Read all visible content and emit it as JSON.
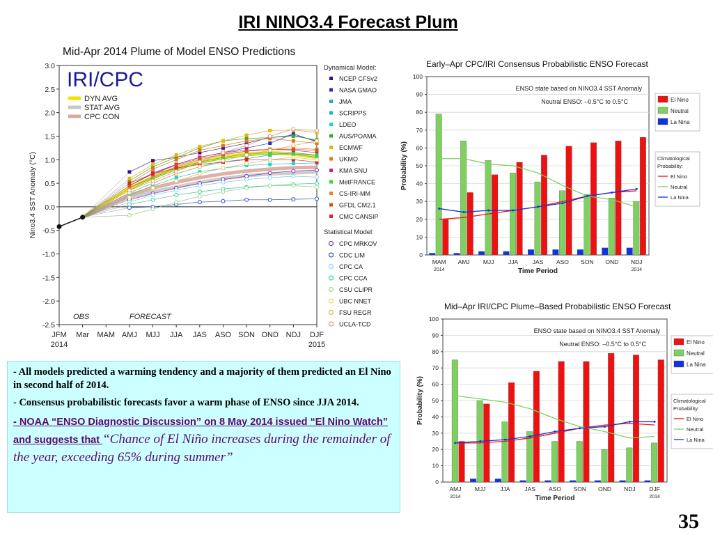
{
  "slide": {
    "title": "IRI NINO3.4 Forecast Plum",
    "page_number": "35"
  },
  "notes": {
    "bullet1": "- All models predicted a warming tendency and a majority of them predicted an El Nino in second half of 2014.",
    "bullet2": "- Consensus probabilistic forecasts favor a warm phase of ENSO since JJA 2014.",
    "bullet3_link": "- NOAA “ENSO Diagnostic Discussion” on 8 May 2014 issued “El Nino Watch” and suggests that ",
    "bullet3_quote": "“Chance of El Niño increases during the remainder of the year, exceeding 65% during summer”"
  },
  "chart_data": [
    {
      "type": "line",
      "title": "Mid-Apr 2014 Plume of Model ENSO Predictions",
      "logo": "IRI/CPC",
      "ylabel": "Nino3.4 SST Anomaly (°C)",
      "ylim": [
        -2.5,
        3.0
      ],
      "yticks": [
        "3.0",
        "2.5",
        "2.0",
        "1.5",
        "1.0",
        "0.5",
        "0.0",
        "-0.5",
        "-1.0",
        "-1.5",
        "-2.0",
        "-2.5"
      ],
      "x": [
        "JFM",
        "Mar",
        "MAM",
        "AMJ",
        "MJJ",
        "JJA",
        "JAS",
        "ASO",
        "SON",
        "OND",
        "NDJ",
        "DJF"
      ],
      "x_year_labels": {
        "first": "2014",
        "last": "2015"
      },
      "obs_label": "OBS",
      "forecast_label": "FORECAST",
      "observed": [
        -0.42,
        -0.22
      ],
      "averages_legend": [
        "DYN AVG",
        "STAT AVG",
        "CPC CON"
      ],
      "averages": {
        "dyn": [
          0.4,
          0.62,
          0.82,
          0.95,
          1.05,
          1.12,
          1.15,
          1.12,
          1.05
        ],
        "stat": [
          0.2,
          0.32,
          0.42,
          0.52,
          0.6,
          0.66,
          0.7,
          0.72,
          0.74
        ],
        "con": [
          0.25,
          0.4,
          0.52,
          0.62,
          0.7,
          0.76,
          0.8,
          0.83,
          0.84
        ]
      },
      "dynamical_header": "Dynamical Model:",
      "statistical_header": "Statistical Model:",
      "dynamical_models": [
        {
          "name": "NCEP CFSv2",
          "color": "#3a0d8c",
          "values": [
            0.74,
            0.98,
            1.05,
            1.15,
            1.25,
            1.35,
            1.47,
            1.52,
            1.4
          ]
        },
        {
          "name": "NASA GMAO",
          "color": "#2d2db8",
          "values": [
            0.45,
            0.7,
            0.9,
            1.05,
            1.15,
            1.25,
            1.35,
            1.55,
            1.38
          ]
        },
        {
          "name": "JMA",
          "color": "#2aa0d8",
          "values": [
            0.3,
            0.5,
            0.7,
            0.85,
            0.95,
            1.02,
            1.1,
            1.15,
            1.1
          ]
        },
        {
          "name": "SCRIPPS",
          "color": "#19b5c8",
          "values": [
            0.4,
            0.62,
            0.82,
            0.95,
            1.05,
            1.12,
            1.15,
            1.12,
            1.05
          ]
        },
        {
          "name": "LDEO",
          "color": "#18d6d6",
          "values": [
            0.25,
            0.45,
            0.62,
            0.74,
            0.82,
            0.88,
            0.9,
            0.92,
            0.93
          ]
        },
        {
          "name": "AUS/POAMA",
          "color": "#2fae2f",
          "values": [
            0.55,
            0.85,
            1.05,
            1.25,
            1.4,
            1.45,
            1.47,
            1.5,
            1.42
          ]
        },
        {
          "name": "ECMWF",
          "color": "#e8b800",
          "values": [
            0.6,
            0.9,
            1.1,
            1.28,
            1.4,
            1.52,
            1.62,
            1.63,
            1.58
          ]
        },
        {
          "name": "UKMO",
          "color": "#e07a10",
          "values": [
            0.5,
            0.8,
            1.0,
            1.2,
            1.3,
            1.4,
            1.45,
            1.4,
            1.35
          ]
        },
        {
          "name": "KMA SNU",
          "color": "#d81b7a",
          "values": [
            0.45,
            0.72,
            0.9,
            1.05,
            1.15,
            1.2,
            1.22,
            1.2,
            1.15
          ]
        },
        {
          "name": "MetFRANCE",
          "color": "#39d439",
          "values": [
            0.35,
            0.6,
            0.78,
            0.92,
            1.02,
            1.08,
            1.12,
            1.12,
            1.1
          ]
        },
        {
          "name": "CS-IRI-MM",
          "color": "#f08030",
          "values": [
            0.4,
            0.65,
            0.85,
            1.0,
            1.1,
            1.18,
            1.22,
            1.25,
            1.22
          ]
        },
        {
          "name": "GFDL CM2.1",
          "color": "#c85a1c",
          "values": [
            0.45,
            0.7,
            0.88,
            1.02,
            1.12,
            1.18,
            1.22,
            1.22,
            1.2
          ]
        },
        {
          "name": "CMC CANSIP",
          "color": "#e02222",
          "values": [
            0.5,
            0.7,
            0.82,
            0.9,
            0.95,
            1.0,
            1.0,
            1.0,
            0.95
          ]
        }
      ],
      "statistical_models": [
        {
          "name": "CPC MRKOV",
          "color": "#7a2ab0",
          "values": [
            0.15,
            0.28,
            0.4,
            0.5,
            0.58,
            0.65,
            0.72,
            0.76,
            0.78
          ]
        },
        {
          "name": "CDC LIM",
          "color": "#2a4ad8",
          "values": [
            -0.02,
            0.0,
            0.05,
            0.1,
            0.12,
            0.15,
            0.15,
            0.16,
            0.17
          ]
        },
        {
          "name": "CPC CA",
          "color": "#7fd8f2",
          "values": [
            0.1,
            0.25,
            0.35,
            0.45,
            0.52,
            0.58,
            0.62,
            0.65,
            0.63
          ]
        },
        {
          "name": "CPC CCA",
          "color": "#2ad4a8",
          "values": [
            0.05,
            0.15,
            0.25,
            0.32,
            0.38,
            0.42,
            0.45,
            0.48,
            0.5
          ]
        },
        {
          "name": "CSU CLIPR",
          "color": "#9adf7a",
          "values": [
            -0.18,
            -0.05,
            0.1,
            0.22,
            0.32,
            0.4,
            0.45,
            0.45,
            0.42
          ]
        },
        {
          "name": "UBC NNET",
          "color": "#f0d060",
          "values": [
            0.2,
            0.4,
            0.55,
            0.7,
            0.82,
            0.92,
            1.0,
            1.05,
            1.0
          ]
        },
        {
          "name": "FSU REGR",
          "color": "#f0b040",
          "values": [
            0.3,
            0.5,
            0.7,
            0.85,
            0.98,
            1.1,
            1.2,
            1.3,
            1.4
          ]
        },
        {
          "name": "UCLA-TCD",
          "color": "#f09070",
          "values": [
            0.35,
            0.55,
            0.75,
            0.95,
            1.15,
            1.3,
            1.5,
            1.65,
            1.62
          ]
        }
      ]
    },
    {
      "type": "bar",
      "title": "Early–Apr CPC/IRI Consensus Probabilistic ENSO Forecast",
      "annotation1": "ENSO state based on NINO3.4 SST Anomaly",
      "annotation2": "Neutral ENSO: –0.5°C to 0.5°C",
      "xlabel": "Time Period",
      "ylabel": "Probability (%)",
      "ylim": [
        0,
        100
      ],
      "yticks": [
        "0",
        "10",
        "20",
        "30",
        "40",
        "50",
        "60",
        "70",
        "80",
        "90",
        "100"
      ],
      "categories": [
        "MAM",
        "AMJ",
        "MJJ",
        "JJA",
        "JAS",
        "ASO",
        "SON",
        "OND",
        "NDJ"
      ],
      "year_labels": {
        "first": "2014",
        "last": "2014"
      },
      "series": [
        {
          "name": "El Nino",
          "color": "#ee1111",
          "values": [
            20,
            35,
            45,
            52,
            56,
            61,
            63,
            64,
            66
          ]
        },
        {
          "name": "Neutral",
          "color": "#7fd060",
          "values": [
            79,
            64,
            53,
            46,
            41,
            36,
            34,
            32,
            30
          ]
        },
        {
          "name": "La Nina",
          "color": "#1133dd",
          "values": [
            1,
            1,
            2,
            2,
            3,
            3,
            3,
            4,
            4
          ]
        }
      ],
      "climatology_title": "Climatological Probability:",
      "climatology": [
        {
          "name": "El Nino",
          "color": "#ee1111",
          "values": [
            20,
            21,
            23,
            25,
            27,
            30,
            33,
            35,
            36
          ]
        },
        {
          "name": "Neutral",
          "color": "#7fd060",
          "values": [
            54,
            54,
            51,
            50,
            46,
            39,
            33,
            31,
            27
          ]
        },
        {
          "name": "La Nina",
          "color": "#1133dd",
          "values": [
            26,
            24,
            25,
            25,
            27,
            29,
            33,
            35,
            37
          ]
        }
      ]
    },
    {
      "type": "bar",
      "title": "Mid–Apr IRI/CPC Plume–Based Probabilistic ENSO Forecast",
      "annotation1": "ENSO state based on NINO3.4 SST Anomaly",
      "annotation2": "Neutral ENSO: –0.5°C to 0.5°C",
      "xlabel": "Time Period",
      "ylabel": "Probability (%)",
      "ylim": [
        0,
        100
      ],
      "yticks": [
        "0",
        "10",
        "20",
        "30",
        "40",
        "50",
        "60",
        "70",
        "80",
        "90",
        "100"
      ],
      "categories": [
        "AMJ",
        "MJJ",
        "JJA",
        "JAS",
        "ASO",
        "SON",
        "OND",
        "NDJ",
        "DJF"
      ],
      "year_labels": {
        "first": "2014",
        "last": "2014"
      },
      "series": [
        {
          "name": "El Nino",
          "color": "#ee1111",
          "values": [
            25,
            48,
            61,
            68,
            74,
            74,
            79,
            78,
            75
          ]
        },
        {
          "name": "Neutral",
          "color": "#7fd060",
          "values": [
            75,
            50,
            37,
            31,
            25,
            25,
            20,
            21,
            24
          ]
        },
        {
          "name": "La Nina",
          "color": "#1133dd",
          "values": [
            0,
            2,
            2,
            1,
            1,
            1,
            1,
            1,
            1
          ]
        }
      ],
      "climatology_title": "Climatological Probability:",
      "climatology": [
        {
          "name": "El Nino",
          "color": "#ee1111",
          "values": [
            24,
            24,
            25,
            27,
            30,
            33,
            35,
            36,
            35
          ]
        },
        {
          "name": "Neutral",
          "color": "#7fd060",
          "values": [
            53,
            51,
            49,
            45,
            39,
            34,
            31,
            27,
            28
          ]
        },
        {
          "name": "La Nina",
          "color": "#1133dd",
          "values": [
            24,
            25,
            26,
            28,
            31,
            33,
            34,
            37,
            37
          ]
        }
      ]
    }
  ]
}
